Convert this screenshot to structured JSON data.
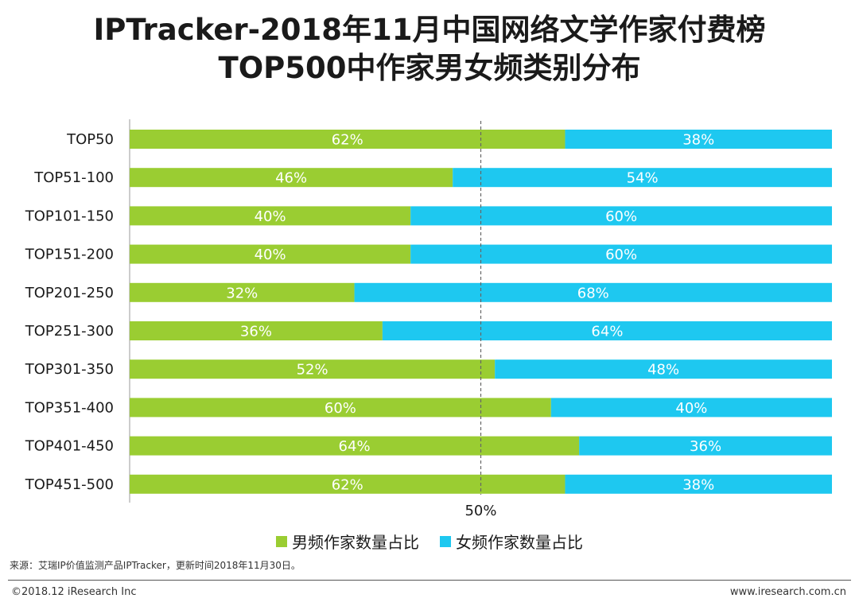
{
  "title_line1": "IPTracker-2018年11月中国网络文学作家付费榜",
  "title_line2": "TOP500中作家男女频类别分布",
  "chart_data": {
    "type": "bar",
    "orientation": "horizontal",
    "stacked": true,
    "percent": true,
    "categories": [
      "TOP50",
      "TOP51-100",
      "TOP101-150",
      "TOP151-200",
      "TOP201-250",
      "TOP251-300",
      "TOP301-350",
      "TOP351-400",
      "TOP401-450",
      "TOP451-500"
    ],
    "series": [
      {
        "name": "男频作家数量占比",
        "color": "#9acd32",
        "values": [
          62,
          46,
          40,
          40,
          32,
          36,
          52,
          60,
          64,
          62
        ]
      },
      {
        "name": "女频作家数量占比",
        "color": "#1ec8f0",
        "values": [
          38,
          54,
          60,
          60,
          68,
          64,
          48,
          40,
          36,
          38
        ]
      }
    ],
    "value_suffix": "%",
    "xlim": [
      0,
      100
    ],
    "reference_line": {
      "value": 50,
      "label": "50%"
    },
    "legend_position": "bottom"
  },
  "footer": {
    "source": "来源：艾瑞IP价值监测产品IPTracker，更新时间2018年11月30日。",
    "copyright": "©2018.12 iResearch Inc",
    "website": "www.iresearch.com.cn"
  }
}
